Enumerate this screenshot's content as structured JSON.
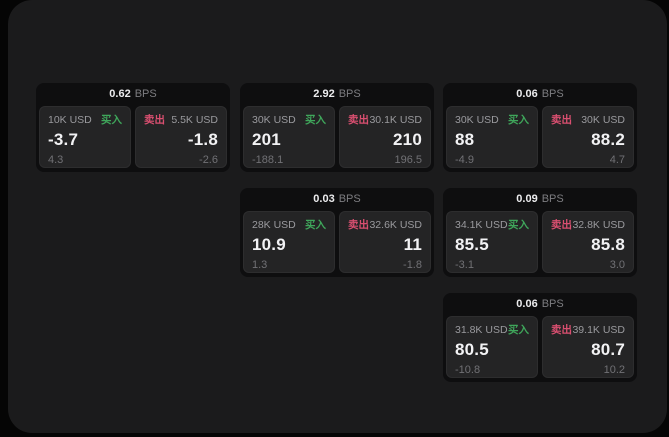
{
  "labels": {
    "bps_unit": "BPS",
    "buy": "买入",
    "sell": "卖出"
  },
  "colors": {
    "buy_green": "#3fa65b",
    "sell_red": "#d94f70",
    "panel_background": "#1b1b1c",
    "card_background": "#0e0e0f",
    "tile_background": "#242425"
  },
  "cards": [
    {
      "col": 1,
      "row": 1,
      "bps": "0.62",
      "buy": {
        "notional": "10K USD",
        "price": "-3.7",
        "delta": "4.3"
      },
      "sell": {
        "notional": "5.5K USD",
        "price": "-1.8",
        "delta": "-2.6"
      }
    },
    {
      "col": 2,
      "row": 1,
      "bps": "2.92",
      "buy": {
        "notional": "30K USD",
        "price": "201",
        "delta": "-188.1"
      },
      "sell": {
        "notional": "30.1K USD",
        "price": "210",
        "delta": "196.5"
      }
    },
    {
      "col": 3,
      "row": 1,
      "bps": "0.06",
      "buy": {
        "notional": "30K USD",
        "price": "88",
        "delta": "-4.9"
      },
      "sell": {
        "notional": "30K USD",
        "price": "88.2",
        "delta": "4.7"
      }
    },
    {
      "col": 2,
      "row": 2,
      "bps": "0.03",
      "buy": {
        "notional": "28K USD",
        "price": "10.9",
        "delta": "1.3"
      },
      "sell": {
        "notional": "32.6K USD",
        "price": "11",
        "delta": "-1.8"
      }
    },
    {
      "col": 3,
      "row": 2,
      "bps": "0.09",
      "buy": {
        "notional": "34.1K USD",
        "price": "85.5",
        "delta": "-3.1"
      },
      "sell": {
        "notional": "32.8K USD",
        "price": "85.8",
        "delta": "3.0"
      }
    },
    {
      "col": 3,
      "row": 3,
      "bps": "0.06",
      "buy": {
        "notional": "31.8K USD",
        "price": "80.5",
        "delta": "-10.8"
      },
      "sell": {
        "notional": "39.1K USD",
        "price": "80.7",
        "delta": "10.2"
      }
    }
  ]
}
